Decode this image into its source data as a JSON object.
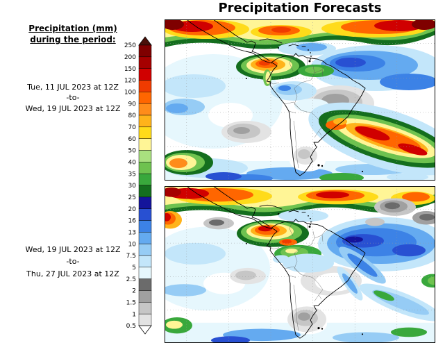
{
  "title": "Precipitation Forecasts",
  "sidebar": {
    "caption_line1": "Precipitation (mm)",
    "caption_line2": "during the period:",
    "periods": [
      {
        "start": "Tue, 11 JUL 2023 at 12Z",
        "separator": "-to-",
        "end": "Wed, 19 JUL 2023 at 12Z"
      },
      {
        "start": "Wed, 19 JUL 2023 at 12Z",
        "separator": "-to-",
        "end": "Thu, 27 JUL 2023 at 12Z"
      }
    ]
  },
  "colorbar": {
    "tick_labels_top_to_bottom": [
      "250",
      "200",
      "150",
      "120",
      "100",
      "90",
      "80",
      "70",
      "60",
      "50",
      "40",
      "35",
      "30",
      "25",
      "20",
      "16",
      "13",
      "10",
      "7.5",
      "5",
      "2.5",
      "2",
      "1.5",
      "1",
      "0.5"
    ],
    "segment_colors_top_to_bottom": [
      "#4a1009",
      "#7f0000",
      "#a50000",
      "#d00000",
      "#f03b00",
      "#ff6600",
      "#ff8c1a",
      "#ffb31a",
      "#ffdb1a",
      "#fff596",
      "#a9e07f",
      "#6ec24f",
      "#39a83c",
      "#146e1e",
      "#14149b",
      "#2850d2",
      "#3c82e6",
      "#64aaf0",
      "#96ccf5",
      "#c3e6fa",
      "#e6f7fd",
      "#6b6b6b",
      "#a0a0a0",
      "#c6c6c6",
      "#e3e3e3",
      "#ffffff"
    ]
  }
}
